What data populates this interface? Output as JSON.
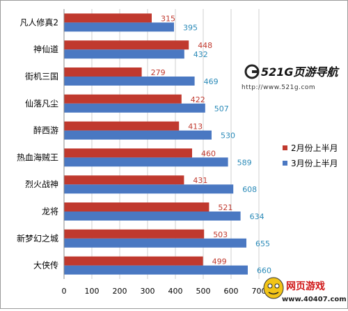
{
  "chart_data": {
    "type": "bar",
    "orientation": "horizontal",
    "categories": [
      "凡人修真2",
      "神仙道",
      "街机三国",
      "仙落凡尘",
      "醉西游",
      "热血海贼王",
      "烈火战神",
      "龙将",
      "新梦幻之城",
      "大侠传"
    ],
    "series": [
      {
        "name": "2月份上半月",
        "color": "#c0392e",
        "label_color": "#c0392e",
        "values": [
          315,
          448,
          279,
          422,
          413,
          460,
          431,
          521,
          503,
          499
        ]
      },
      {
        "name": "3月份上半月",
        "color": "#4a78c2",
        "label_color": "#2a8ab8",
        "values": [
          395,
          432,
          469,
          507,
          530,
          589,
          608,
          634,
          655,
          660
        ]
      }
    ],
    "xlim": [
      0,
      700
    ],
    "xticks": [
      "0",
      "100",
      "200",
      "300",
      "400",
      "500",
      "600",
      "700"
    ],
    "grid": true,
    "legend_position": "right"
  },
  "watermark": {
    "site_name": "521G页游导航",
    "site_url": "http://www.521g.com"
  },
  "badge": {
    "title": "网页游戏",
    "url": "www.40407.com"
  }
}
